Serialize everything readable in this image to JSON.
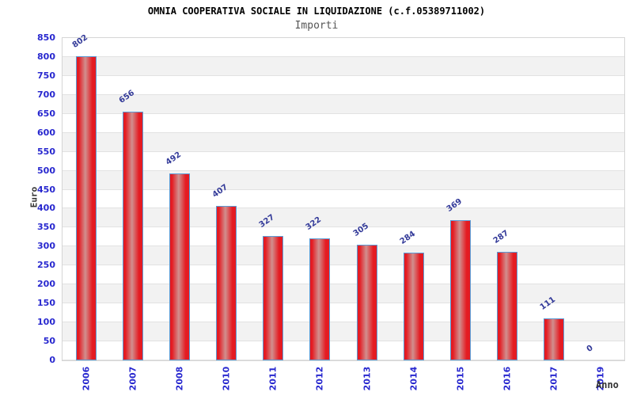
{
  "header": {
    "title": "OMNIA COOPERATIVA SOCIALE IN LIQUIDAZIONE (c.f.05389711002)",
    "subtitle": "Importi"
  },
  "chart_data": {
    "type": "bar",
    "title": "OMNIA COOPERATIVA SOCIALE IN LIQUIDAZIONE (c.f.05389711002)",
    "subtitle": "Importi",
    "categories": [
      "2006",
      "2007",
      "2008",
      "2010",
      "2011",
      "2012",
      "2013",
      "2014",
      "2015",
      "2016",
      "2017",
      "2019"
    ],
    "values": [
      802,
      656,
      492,
      407,
      327,
      322,
      305,
      284,
      369,
      287,
      111,
      0
    ],
    "xlabel": "Anno",
    "ylabel": "Euro",
    "ylim": [
      0,
      850
    ],
    "ytick_step": 50,
    "grid": "alternating-horizontal-bands",
    "legend": "none",
    "colors": {
      "bar_fill_edge": "#e41b22",
      "bar_fill_center": "#d18f8e",
      "bar_border": "#5b9bd5",
      "axis_tick_label": "#2828cf",
      "value_label": "#333a99",
      "band_gray": "#f2f2f2",
      "band_white": "#ffffff",
      "plot_border": "#d5d5d5",
      "title_color": "#000000",
      "subtitle_color": "#555555",
      "axis_title_color": "#333333"
    }
  }
}
